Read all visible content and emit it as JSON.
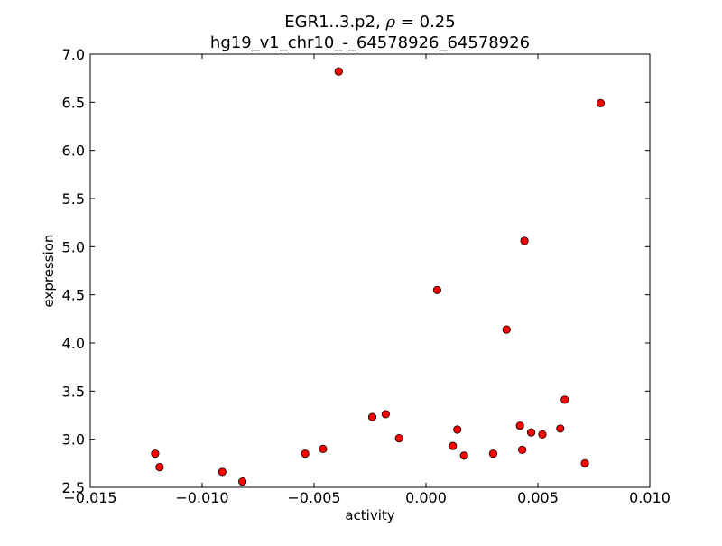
{
  "chart_data": {
    "type": "scatter",
    "title": {
      "line1_prefix": "EGR1..3.p2, ",
      "rho_symbol": "ρ",
      "rho_eq": " = ",
      "rho_value": "0.25",
      "line2": "hg19_v1_chr10_-_64578926_64578926"
    },
    "xlabel": "activity",
    "ylabel": "expression",
    "xlim": [
      -0.015,
      0.01
    ],
    "ylim": [
      2.5,
      7.0
    ],
    "x_ticks": [
      -0.015,
      -0.01,
      -0.005,
      0.0,
      0.005,
      0.01
    ],
    "x_tick_labels": [
      "−0.015",
      "−0.010",
      "−0.005",
      "0.000",
      "0.005",
      "0.010"
    ],
    "y_ticks": [
      2.5,
      3.0,
      3.5,
      4.0,
      4.5,
      5.0,
      5.5,
      6.0,
      6.5,
      7.0
    ],
    "y_tick_labels": [
      "2.5",
      "3.0",
      "3.5",
      "4.0",
      "4.5",
      "5.0",
      "5.5",
      "6.0",
      "6.5",
      "7.0"
    ],
    "grid": false,
    "marker_color": "#ff0000",
    "marker_edge_color": "#000000",
    "points": [
      {
        "x": -0.0039,
        "y": 6.82
      },
      {
        "x": 0.0078,
        "y": 6.49
      },
      {
        "x": 0.0044,
        "y": 5.06
      },
      {
        "x": 0.0005,
        "y": 4.55
      },
      {
        "x": 0.0036,
        "y": 4.14
      },
      {
        "x": 0.0062,
        "y": 3.41
      },
      {
        "x": -0.0024,
        "y": 3.23
      },
      {
        "x": -0.0018,
        "y": 3.26
      },
      {
        "x": 0.0014,
        "y": 3.1
      },
      {
        "x": 0.0042,
        "y": 3.14
      },
      {
        "x": 0.0047,
        "y": 3.07
      },
      {
        "x": 0.0052,
        "y": 3.05
      },
      {
        "x": 0.006,
        "y": 3.11
      },
      {
        "x": -0.0012,
        "y": 3.01
      },
      {
        "x": 0.0012,
        "y": 2.93
      },
      {
        "x": 0.0043,
        "y": 2.89
      },
      {
        "x": -0.0046,
        "y": 2.9
      },
      {
        "x": -0.0054,
        "y": 2.85
      },
      {
        "x": 0.003,
        "y": 2.85
      },
      {
        "x": 0.0017,
        "y": 2.83
      },
      {
        "x": 0.0071,
        "y": 2.75
      },
      {
        "x": -0.0121,
        "y": 2.85
      },
      {
        "x": -0.0119,
        "y": 2.71
      },
      {
        "x": -0.0091,
        "y": 2.66
      },
      {
        "x": -0.0082,
        "y": 2.56
      }
    ]
  }
}
